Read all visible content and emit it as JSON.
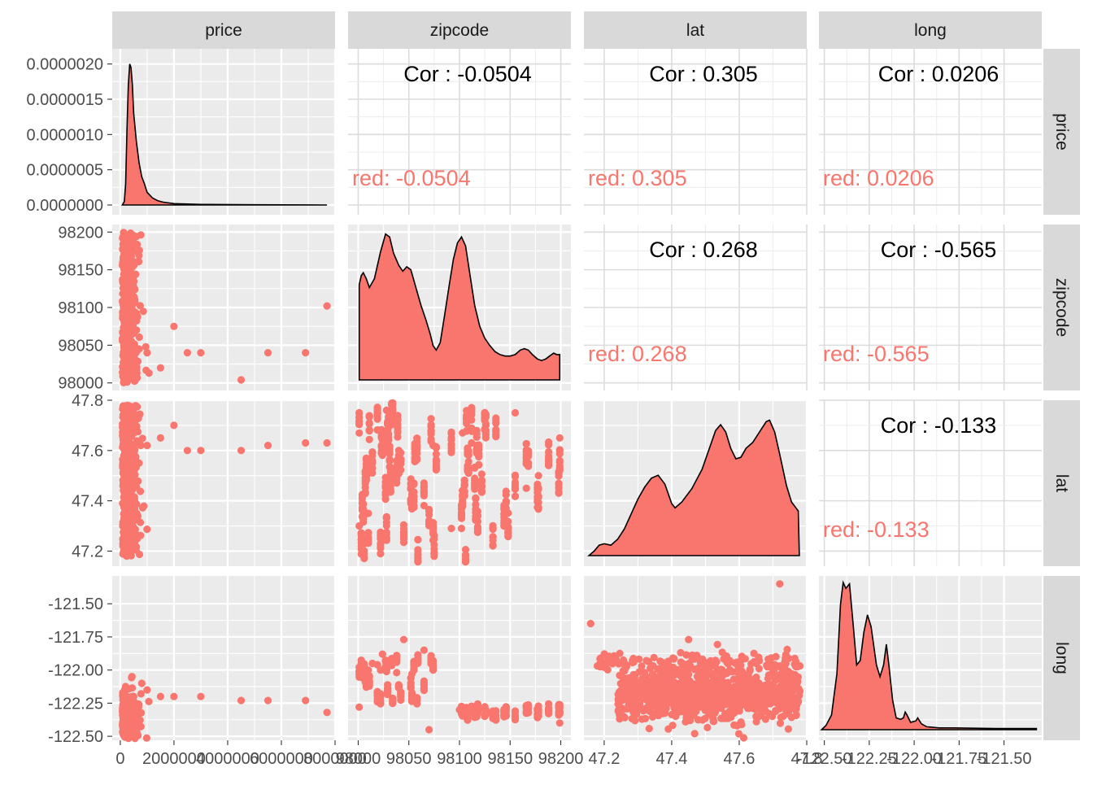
{
  "chart_data": {
    "type": "scatter-matrix",
    "variables": [
      "price",
      "zipcode",
      "lat",
      "long"
    ],
    "colors": {
      "group": "#F8766D",
      "strip": "#D9D9D9",
      "panel": "#EBEBEB"
    },
    "ticks": {
      "price": {
        "values": [
          0,
          2000000,
          4000000,
          6000000,
          8000000
        ],
        "labels": [
          "0",
          "2000000",
          "4000000",
          "6000000",
          "8000000"
        ],
        "range": [
          -300000,
          8000000
        ]
      },
      "zipcode": {
        "values": [
          98000,
          98050,
          98100,
          98150,
          98200
        ],
        "labels": [
          "98000",
          "98050",
          "98100",
          "98150",
          "98200"
        ],
        "range": [
          97990,
          98210
        ]
      },
      "lat": {
        "values": [
          47.2,
          47.4,
          47.6,
          47.8
        ],
        "labels": [
          "47.2",
          "47.4",
          "47.6",
          "47.8"
        ],
        "range": [
          47.14,
          47.8
        ]
      },
      "long": {
        "values": [
          -122.5,
          -122.25,
          -122.0,
          -121.75,
          -121.5
        ],
        "labels": [
          "-122.50",
          "-122.25",
          "-122.00",
          "-121.75",
          "-121.50"
        ],
        "range": [
          -122.53,
          -121.29
        ]
      }
    },
    "density_axis": {
      "values": [
        0,
        5e-07,
        1e-06,
        1.5e-06,
        2e-06
      ],
      "labels": [
        "0.0000000",
        "0.0000005",
        "0.0000010",
        "0.0000015",
        "0.0000020"
      ],
      "range": [
        0,
        2.1e-06
      ]
    },
    "correlations": [
      {
        "row": "price",
        "col": "zipcode",
        "label": "Cor : -0.0504",
        "group": "red: -0.0504"
      },
      {
        "row": "price",
        "col": "lat",
        "label": "Cor : 0.305",
        "group": "red: 0.305"
      },
      {
        "row": "price",
        "col": "long",
        "label": "Cor : 0.0206",
        "group": "red: 0.0206"
      },
      {
        "row": "zipcode",
        "col": "lat",
        "label": "Cor : 0.268",
        "group": "red: 0.268"
      },
      {
        "row": "zipcode",
        "col": "long",
        "label": "Cor : -0.565",
        "group": "red: -0.565"
      },
      {
        "row": "lat",
        "col": "long",
        "label": "Cor : -0.133",
        "group": "red: -0.133"
      }
    ],
    "densities": {
      "price": [
        [
          75000,
          0
        ],
        [
          150000,
          5e-08
        ],
        [
          200000,
          3e-07
        ],
        [
          250000,
          1.1e-06
        ],
        [
          300000,
          1.7e-06
        ],
        [
          350000,
          2e-06
        ],
        [
          400000,
          1.95e-06
        ],
        [
          450000,
          1.7e-06
        ],
        [
          500000,
          1.3e-06
        ],
        [
          600000,
          9e-07
        ],
        [
          700000,
          6e-07
        ],
        [
          800000,
          4e-07
        ],
        [
          900000,
          3e-07
        ],
        [
          1000000,
          1.8e-07
        ],
        [
          1200000,
          1e-07
        ],
        [
          1400000,
          6e-08
        ],
        [
          1600000,
          4e-08
        ],
        [
          2000000,
          2e-08
        ],
        [
          3000000,
          8e-09
        ],
        [
          5000000,
          3e-09
        ],
        [
          7700000,
          0
        ]
      ],
      "zipcode": [
        [
          98001,
          0.64
        ],
        [
          98003,
          0.7
        ],
        [
          98005,
          0.72
        ],
        [
          98008,
          0.68
        ],
        [
          98011,
          0.62
        ],
        [
          98016,
          0.68
        ],
        [
          98022,
          0.86
        ],
        [
          98027,
          0.98
        ],
        [
          98031,
          0.96
        ],
        [
          98035,
          0.85
        ],
        [
          98040,
          0.77
        ],
        [
          98044,
          0.73
        ],
        [
          98048,
          0.76
        ],
        [
          98052,
          0.74
        ],
        [
          98057,
          0.62
        ],
        [
          98062,
          0.5
        ],
        [
          98067,
          0.4
        ],
        [
          98071,
          0.31
        ],
        [
          98074,
          0.23
        ],
        [
          98077,
          0.2
        ],
        [
          98081,
          0.25
        ],
        [
          98085,
          0.42
        ],
        [
          98090,
          0.64
        ],
        [
          98094,
          0.81
        ],
        [
          98098,
          0.92
        ],
        [
          98102,
          0.96
        ],
        [
          98106,
          0.9
        ],
        [
          98110,
          0.72
        ],
        [
          98115,
          0.5
        ],
        [
          98120,
          0.36
        ],
        [
          98125,
          0.28
        ],
        [
          98130,
          0.23
        ],
        [
          98135,
          0.19
        ],
        [
          98140,
          0.17
        ],
        [
          98145,
          0.16
        ],
        [
          98150,
          0.16
        ],
        [
          98155,
          0.17
        ],
        [
          98160,
          0.2
        ],
        [
          98164,
          0.21
        ],
        [
          98168,
          0.2
        ],
        [
          98172,
          0.17
        ],
        [
          98177,
          0.14
        ],
        [
          98181,
          0.13
        ],
        [
          98185,
          0.14
        ],
        [
          98189,
          0.16
        ],
        [
          98193,
          0.18
        ],
        [
          98196,
          0.17
        ],
        [
          98199,
          0.17
        ]
      ],
      "lat": [
        [
          47.155,
          0
        ],
        [
          47.17,
          0.03
        ],
        [
          47.185,
          0.07
        ],
        [
          47.2,
          0.08
        ],
        [
          47.22,
          0.07
        ],
        [
          47.24,
          0.11
        ],
        [
          47.26,
          0.18
        ],
        [
          47.28,
          0.28
        ],
        [
          47.3,
          0.38
        ],
        [
          47.32,
          0.46
        ],
        [
          47.34,
          0.52
        ],
        [
          47.36,
          0.54
        ],
        [
          47.38,
          0.48
        ],
        [
          47.4,
          0.35
        ],
        [
          47.41,
          0.32
        ],
        [
          47.43,
          0.36
        ],
        [
          47.46,
          0.45
        ],
        [
          47.49,
          0.58
        ],
        [
          47.51,
          0.71
        ],
        [
          47.53,
          0.84
        ],
        [
          47.545,
          0.88
        ],
        [
          47.56,
          0.83
        ],
        [
          47.575,
          0.72
        ],
        [
          47.59,
          0.65
        ],
        [
          47.605,
          0.66
        ],
        [
          47.62,
          0.72
        ],
        [
          47.64,
          0.76
        ],
        [
          47.66,
          0.83
        ],
        [
          47.68,
          0.9
        ],
        [
          47.69,
          0.91
        ],
        [
          47.705,
          0.83
        ],
        [
          47.72,
          0.68
        ],
        [
          47.74,
          0.47
        ],
        [
          47.755,
          0.36
        ],
        [
          47.775,
          0.3
        ],
        [
          47.778,
          0
        ]
      ],
      "long": [
        [
          -122.515,
          0
        ],
        [
          -122.49,
          0.03
        ],
        [
          -122.46,
          0.1
        ],
        [
          -122.43,
          0.38
        ],
        [
          -122.41,
          0.85
        ],
        [
          -122.395,
          1.0
        ],
        [
          -122.38,
          0.96
        ],
        [
          -122.36,
          0.99
        ],
        [
          -122.34,
          0.72
        ],
        [
          -122.32,
          0.44
        ],
        [
          -122.3,
          0.47
        ],
        [
          -122.28,
          0.66
        ],
        [
          -122.26,
          0.78
        ],
        [
          -122.24,
          0.7
        ],
        [
          -122.21,
          0.44
        ],
        [
          -122.19,
          0.36
        ],
        [
          -122.17,
          0.44
        ],
        [
          -122.155,
          0.58
        ],
        [
          -122.14,
          0.43
        ],
        [
          -122.12,
          0.2
        ],
        [
          -122.1,
          0.08
        ],
        [
          -122.075,
          0.07
        ],
        [
          -122.06,
          0.08
        ],
        [
          -122.05,
          0.12
        ],
        [
          -122.04,
          0.1
        ],
        [
          -122.02,
          0.05
        ],
        [
          -121.99,
          0.06
        ],
        [
          -121.98,
          0.08
        ],
        [
          -121.96,
          0.04
        ],
        [
          -121.93,
          0.02
        ],
        [
          -121.86,
          0.012
        ],
        [
          -121.78,
          0.012
        ],
        [
          -121.67,
          0.01
        ],
        [
          -121.55,
          0.008
        ],
        [
          -121.45,
          0.008
        ],
        [
          -121.32,
          0.008
        ]
      ]
    },
    "sample_points": {
      "price_zipcode": [
        [
          200000,
          98005
        ],
        [
          350000,
          98010
        ],
        [
          500000,
          98030
        ],
        [
          700000,
          98045
        ],
        [
          1000000,
          98040
        ],
        [
          1500000,
          98020
        ],
        [
          2000000,
          98075
        ],
        [
          2500000,
          98040
        ],
        [
          3000000,
          98040
        ],
        [
          4500000,
          98004
        ],
        [
          5500000,
          98040
        ],
        [
          6900000,
          98040
        ],
        [
          7700000,
          98102
        ]
      ],
      "price_lat": [
        [
          300000,
          47.3
        ],
        [
          500000,
          47.45
        ],
        [
          700000,
          47.55
        ],
        [
          1000000,
          47.62
        ],
        [
          1500000,
          47.65
        ],
        [
          2000000,
          47.7
        ],
        [
          2500000,
          47.6
        ],
        [
          3000000,
          47.6
        ],
        [
          4500000,
          47.6
        ],
        [
          5500000,
          47.62
        ],
        [
          6900000,
          47.63
        ],
        [
          7700000,
          47.63
        ]
      ],
      "price_long": [
        [
          300000,
          -122.3
        ],
        [
          500000,
          -122.2
        ],
        [
          800000,
          -122.1
        ],
        [
          1000000,
          -122.15
        ],
        [
          1500000,
          -122.2
        ],
        [
          2000000,
          -122.2
        ],
        [
          3000000,
          -122.2
        ],
        [
          4500000,
          -122.23
        ],
        [
          5500000,
          -122.23
        ],
        [
          6900000,
          -122.23
        ],
        [
          7700000,
          -122.32
        ]
      ],
      "zipcode_lat": [
        [
          98001,
          47.3
        ],
        [
          98010,
          47.35
        ],
        [
          98028,
          47.76
        ],
        [
          98040,
          47.58
        ],
        [
          98055,
          47.47
        ],
        [
          98074,
          47.62
        ],
        [
          98092,
          47.29
        ],
        [
          98103,
          47.67
        ],
        [
          98112,
          47.63
        ],
        [
          98125,
          47.72
        ],
        [
          98155,
          47.75
        ],
        [
          98166,
          47.45
        ],
        [
          98178,
          47.5
        ],
        [
          98199,
          47.65
        ]
      ],
      "zipcode_long": [
        [
          98001,
          -122.28
        ],
        [
          98010,
          -122.0
        ],
        [
          98014,
          -121.95
        ],
        [
          98019,
          -121.96
        ],
        [
          98022,
          -122.0
        ],
        [
          98024,
          -121.88
        ],
        [
          98038,
          -122.02
        ],
        [
          98045,
          -121.77
        ],
        [
          98053,
          -122.03
        ],
        [
          98065,
          -121.85
        ],
        [
          98070,
          -122.45
        ],
        [
          98100,
          -122.3
        ],
        [
          98125,
          -122.3
        ],
        [
          98199,
          -122.4
        ]
      ],
      "lat_long": [
        [
          47.16,
          -121.65
        ],
        [
          47.2,
          -121.98
        ],
        [
          47.3,
          -122.2
        ],
        [
          47.4,
          -122.1
        ],
        [
          47.45,
          -121.77
        ],
        [
          47.5,
          -122.2
        ],
        [
          47.55,
          -122.0
        ],
        [
          47.6,
          -122.2
        ],
        [
          47.65,
          -122.35
        ],
        [
          47.7,
          -122.0
        ],
        [
          47.72,
          -121.35
        ],
        [
          47.75,
          -122.3
        ],
        [
          47.77,
          -122.25
        ]
      ]
    }
  }
}
